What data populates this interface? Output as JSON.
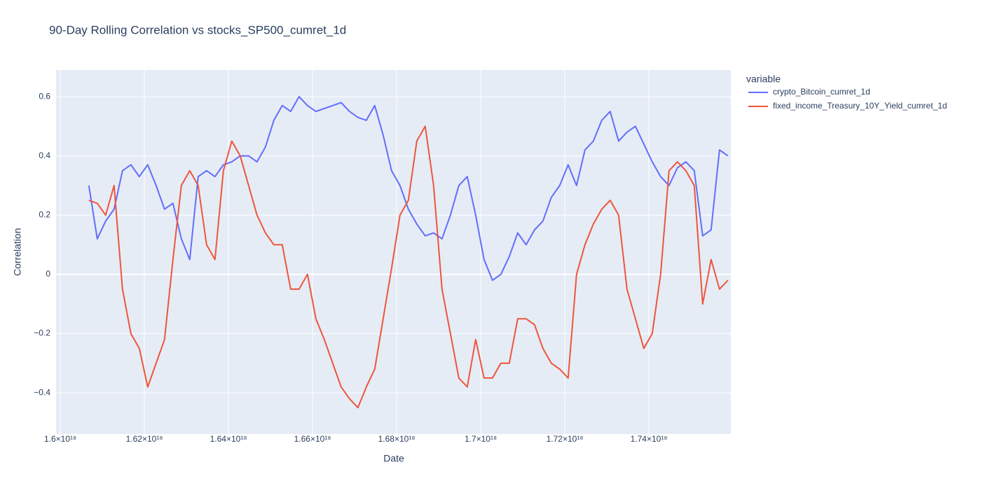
{
  "chart_data": {
    "type": "line",
    "title": "90-Day Rolling Correlation vs stocks_SP500_cumret_1d",
    "x_label": "Date",
    "y_label": "Correlation",
    "legend_title": "variable",
    "x": [
      1.6068e+18,
      1.6088e+18,
      1.6108e+18,
      1.6128e+18,
      1.6148e+18,
      1.6168e+18,
      1.6188e+18,
      1.6208e+18,
      1.6228e+18,
      1.6248e+18,
      1.6268e+18,
      1.6288e+18,
      1.6308e+18,
      1.6328e+18,
      1.6348e+18,
      1.6368e+18,
      1.6388e+18,
      1.6408e+18,
      1.6428e+18,
      1.6448e+18,
      1.6468e+18,
      1.6488e+18,
      1.6508e+18,
      1.6528e+18,
      1.6548e+18,
      1.6568e+18,
      1.6588e+18,
      1.6608e+18,
      1.6628e+18,
      1.6648e+18,
      1.6668e+18,
      1.6688e+18,
      1.6708e+18,
      1.6728e+18,
      1.6748e+18,
      1.6768e+18,
      1.6788e+18,
      1.6808e+18,
      1.6828e+18,
      1.6848e+18,
      1.6868e+18,
      1.6888e+18,
      1.6908e+18,
      1.6928e+18,
      1.6948e+18,
      1.6968e+18,
      1.6988e+18,
      1.7008e+18,
      1.7028e+18,
      1.7048e+18,
      1.7068e+18,
      1.7088e+18,
      1.7108e+18,
      1.7128e+18,
      1.7148e+18,
      1.7168e+18,
      1.7188e+18,
      1.7208e+18,
      1.7228e+18,
      1.7248e+18,
      1.7268e+18,
      1.7288e+18,
      1.7308e+18,
      1.7328e+18,
      1.7348e+18,
      1.7368e+18,
      1.7388e+18,
      1.7408e+18,
      1.7428e+18,
      1.7448e+18,
      1.7468e+18,
      1.7488e+18,
      1.7508e+18,
      1.7528e+18,
      1.7548e+18,
      1.7568e+18,
      1.7588e+18
    ],
    "series": [
      {
        "name": "crypto_Bitcoin_cumret_1d",
        "color": "#636efa",
        "values": [
          0.3,
          0.12,
          0.18,
          0.22,
          0.35,
          0.37,
          0.33,
          0.37,
          0.3,
          0.22,
          0.24,
          0.12,
          0.05,
          0.33,
          0.35,
          0.33,
          0.37,
          0.38,
          0.4,
          0.4,
          0.38,
          0.43,
          0.52,
          0.57,
          0.55,
          0.6,
          0.57,
          0.55,
          0.56,
          0.57,
          0.58,
          0.55,
          0.53,
          0.52,
          0.57,
          0.47,
          0.35,
          0.3,
          0.22,
          0.17,
          0.13,
          0.14,
          0.12,
          0.2,
          0.3,
          0.33,
          0.2,
          0.05,
          -0.02,
          0.0,
          0.06,
          0.14,
          0.1,
          0.15,
          0.18,
          0.26,
          0.3,
          0.37,
          0.3,
          0.42,
          0.45,
          0.52,
          0.55,
          0.45,
          0.48,
          0.5,
          0.44,
          0.38,
          0.33,
          0.3,
          0.36,
          0.38,
          0.35,
          0.13,
          0.15,
          0.42,
          0.4
        ]
      },
      {
        "name": "fixed_income_Treasury_10Y_Yield_cumret_1d",
        "color": "#EF553B",
        "values": [
          0.25,
          0.24,
          0.2,
          0.3,
          -0.05,
          -0.2,
          -0.25,
          -0.38,
          -0.3,
          -0.22,
          0.05,
          0.3,
          0.35,
          0.3,
          0.1,
          0.05,
          0.35,
          0.45,
          0.4,
          0.3,
          0.2,
          0.14,
          0.1,
          0.1,
          -0.05,
          -0.05,
          0.0,
          -0.15,
          -0.22,
          -0.3,
          -0.38,
          -0.42,
          -0.45,
          -0.38,
          -0.32,
          -0.15,
          0.02,
          0.2,
          0.25,
          0.45,
          0.5,
          0.3,
          -0.05,
          -0.2,
          -0.35,
          -0.38,
          -0.22,
          -0.35,
          -0.35,
          -0.3,
          -0.3,
          -0.15,
          -0.15,
          -0.17,
          -0.25,
          -0.3,
          -0.32,
          -0.35,
          0.0,
          0.1,
          0.17,
          0.22,
          0.25,
          0.2,
          -0.05,
          -0.15,
          -0.25,
          -0.2,
          0.0,
          0.35,
          0.38,
          0.35,
          0.3,
          -0.1,
          0.05,
          -0.05,
          -0.02
        ]
      }
    ],
    "xlim": [
      1.599e+18,
      1.7595e+18
    ],
    "ylim": [
      -0.539,
      0.69
    ],
    "xticks": [
      {
        "value": 1.6e+18,
        "label": "1.6×10¹⁸"
      },
      {
        "value": 1.62e+18,
        "label": "1.62×10¹⁸"
      },
      {
        "value": 1.64e+18,
        "label": "1.64×10¹⁸"
      },
      {
        "value": 1.66e+18,
        "label": "1.66×10¹⁸"
      },
      {
        "value": 1.68e+18,
        "label": "1.68×10¹⁸"
      },
      {
        "value": 1.7e+18,
        "label": "1.7×10¹⁸"
      },
      {
        "value": 1.72e+18,
        "label": "1.72×10¹⁸"
      },
      {
        "value": 1.74e+18,
        "label": "1.74×10¹⁸"
      }
    ],
    "yticks": [
      {
        "value": -0.4,
        "label": "−0.4"
      },
      {
        "value": -0.2,
        "label": "−0.2"
      },
      0,
      0.2,
      0.4,
      0.6
    ],
    "grid": true
  }
}
